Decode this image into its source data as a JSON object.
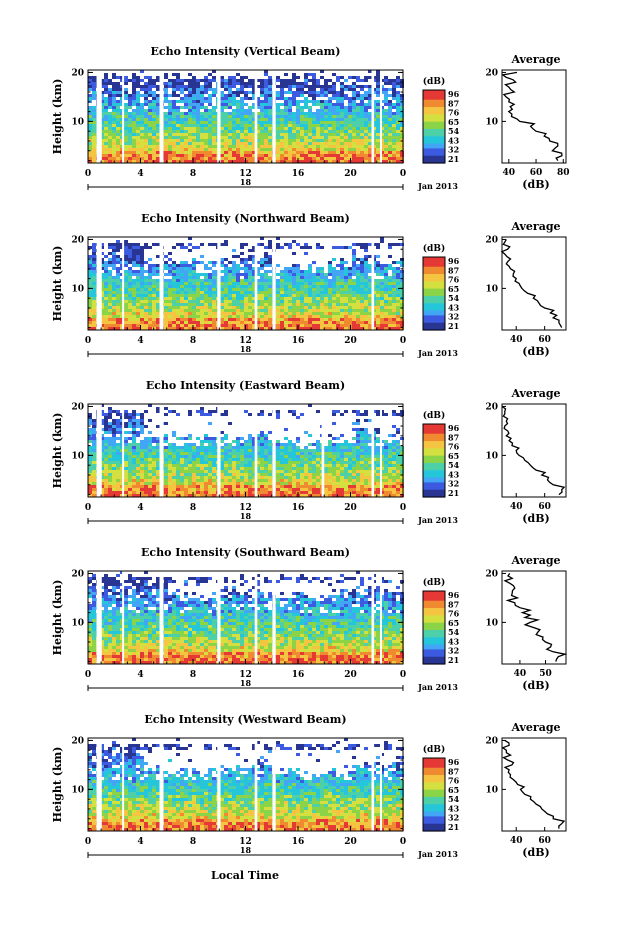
{
  "figure": {
    "xlabel": "Local Time",
    "month_label": "Jan 2013",
    "colorbar_unit": "(dB)",
    "colorbar_ticks": [
      "96",
      "87",
      "76",
      "65",
      "54",
      "43",
      "32",
      "21"
    ],
    "colorscale": [
      "#283593",
      "#3c5be0",
      "#42a5f5",
      "#26c6da",
      "#4dd0a8",
      "#8bd448",
      "#d4e040",
      "#f5c542",
      "#f08a30",
      "#e53935"
    ]
  },
  "chart_data": [
    {
      "type": "heatmap",
      "title": "Echo Intensity (Vertical Beam)",
      "ylabel": "Height (km)",
      "x_ticks": [
        "0",
        "4",
        "8",
        "12",
        "16",
        "20",
        "0"
      ],
      "xlim": [
        0,
        24
      ],
      "date_label": "18",
      "y_ticks": [
        "20",
        "10"
      ],
      "ylim": [
        1.5,
        20.5
      ],
      "echo_top_km": [
        19.3,
        19.0,
        19.2,
        19.4,
        19.1,
        19.3,
        19.0,
        19.2,
        19.3,
        19.1,
        19.0,
        19.2
      ],
      "data_gaps_h": [
        [
          0.65,
          1.05
        ],
        [
          2.6,
          2.75
        ],
        [
          5.45,
          5.75
        ],
        [
          9.85,
          10.1
        ],
        [
          12.7,
          12.9
        ],
        [
          14.05,
          14.3
        ],
        [
          21.6,
          21.8
        ],
        [
          22.25,
          22.4
        ]
      ],
      "average_profile": {
        "title": "Average",
        "xlabel": "(dB)",
        "x_ticks": [
          "40",
          "60",
          "80"
        ],
        "xlim": [
          35,
          82
        ],
        "y_ticks": [
          "20",
          "10"
        ],
        "height_km": [
          2,
          3,
          4,
          5,
          6,
          7,
          8,
          9,
          10,
          11,
          12,
          13,
          14,
          15,
          16,
          17,
          18,
          19,
          20
        ],
        "intensity_db": [
          76,
          79,
          72,
          76,
          70,
          66,
          60,
          56,
          48,
          42,
          40,
          41,
          40,
          38,
          44,
          40,
          45,
          38,
          46
        ]
      }
    },
    {
      "type": "heatmap",
      "title": "Echo Intensity (Northward Beam)",
      "ylabel": "Height (km)",
      "x_ticks": [
        "0",
        "4",
        "8",
        "12",
        "16",
        "20",
        "0"
      ],
      "xlim": [
        0,
        24
      ],
      "date_label": "18",
      "y_ticks": [
        "20",
        "10"
      ],
      "ylim": [
        1.5,
        20.5
      ],
      "echo_top_km": [
        18.5,
        19.2,
        16.0,
        15.5,
        15.0,
        16.5,
        17.5,
        15.0,
        14.5,
        15.5,
        17.0,
        16.0
      ],
      "data_gaps_h": [
        [
          0.65,
          1.05
        ],
        [
          2.6,
          2.75
        ],
        [
          5.45,
          5.75
        ],
        [
          9.85,
          10.1
        ],
        [
          12.7,
          12.9
        ],
        [
          14.05,
          14.3
        ],
        [
          21.6,
          21.8
        ]
      ],
      "average_profile": {
        "title": "Average",
        "xlabel": "(dB)",
        "x_ticks": [
          "40",
          "60"
        ],
        "xlim": [
          30,
          75
        ],
        "y_ticks": [
          "20",
          "10"
        ],
        "height_km": [
          2,
          3,
          4,
          5,
          6,
          7,
          8,
          9,
          10,
          11,
          12,
          13,
          14,
          15,
          16,
          17,
          18,
          19,
          20
        ],
        "intensity_db": [
          72,
          70,
          66,
          64,
          60,
          56,
          52,
          48,
          44,
          42,
          40,
          38,
          36,
          33,
          36,
          32,
          34,
          31,
          33
        ]
      }
    },
    {
      "type": "heatmap",
      "title": "Echo Intensity (Eastward Beam)",
      "ylabel": "Height (km)",
      "x_ticks": [
        "0",
        "4",
        "8",
        "12",
        "16",
        "20",
        "0"
      ],
      "xlim": [
        0,
        24
      ],
      "date_label": "18",
      "y_ticks": [
        "20",
        "10"
      ],
      "ylim": [
        1.5,
        20.5
      ],
      "echo_top_km": [
        19.0,
        18.5,
        14.5,
        13.0,
        13.5,
        14.0,
        15.0,
        13.0,
        12.5,
        13.5,
        15.5,
        14.0
      ],
      "data_gaps_h": [
        [
          0.65,
          1.05
        ],
        [
          2.6,
          2.75
        ],
        [
          5.45,
          5.75
        ],
        [
          9.85,
          10.1
        ],
        [
          12.7,
          12.9
        ],
        [
          14.05,
          14.3
        ],
        [
          17.8,
          18.0
        ],
        [
          21.6,
          21.8
        ],
        [
          22.25,
          22.4
        ]
      ],
      "average_profile": {
        "title": "Average",
        "xlabel": "(dB)",
        "x_ticks": [
          "40",
          "60"
        ],
        "xlim": [
          30,
          75
        ],
        "y_ticks": [
          "20",
          "10"
        ],
        "height_km": [
          2,
          3,
          4,
          5,
          6,
          7,
          8,
          9,
          10,
          11,
          12,
          13,
          14,
          15,
          16,
          17,
          18,
          19,
          20
        ],
        "intensity_db": [
          70,
          72,
          66,
          62,
          58,
          54,
          50,
          46,
          42,
          40,
          37,
          35,
          33,
          34,
          32,
          33,
          31,
          32,
          30
        ]
      }
    },
    {
      "type": "heatmap",
      "title": "Echo Intensity (Southward Beam)",
      "ylabel": "Height (km)",
      "x_ticks": [
        "0",
        "4",
        "8",
        "12",
        "16",
        "20",
        "0"
      ],
      "xlim": [
        0,
        24
      ],
      "date_label": "18",
      "y_ticks": [
        "20",
        "10"
      ],
      "ylim": [
        1.5,
        20.5
      ],
      "echo_top_km": [
        19.5,
        19.0,
        18.5,
        16.0,
        15.5,
        16.5,
        17.0,
        16.0,
        15.5,
        16.5,
        17.5,
        16.5
      ],
      "data_gaps_h": [
        [
          0.65,
          1.05
        ],
        [
          2.6,
          2.75
        ],
        [
          5.45,
          5.75
        ],
        [
          9.85,
          10.1
        ],
        [
          12.7,
          12.9
        ],
        [
          14.05,
          14.3
        ],
        [
          21.6,
          21.8
        ],
        [
          22.25,
          22.4
        ]
      ],
      "average_profile": {
        "title": "Average",
        "xlabel": "(dB)",
        "x_ticks": [
          "40",
          "50"
        ],
        "xlim": [
          33,
          58
        ],
        "y_ticks": [
          "20",
          "10"
        ],
        "height_km": [
          2,
          3,
          4,
          5,
          6,
          7,
          8,
          9,
          10,
          11,
          12,
          13,
          14,
          15,
          16,
          17,
          18,
          19,
          20
        ],
        "intensity_db": [
          54,
          55,
          53,
          52,
          50,
          49,
          47,
          45,
          44,
          42,
          41,
          40,
          38,
          39,
          37,
          38,
          36,
          37,
          36
        ]
      }
    },
    {
      "type": "heatmap",
      "title": "Echo Intensity (Westward Beam)",
      "ylabel": "Height (km)",
      "x_ticks": [
        "0",
        "4",
        "8",
        "12",
        "16",
        "20",
        "0"
      ],
      "xlim": [
        0,
        24
      ],
      "date_label": "18",
      "y_ticks": [
        "20",
        "10"
      ],
      "ylim": [
        1.5,
        20.5
      ],
      "echo_top_km": [
        19.2,
        18.8,
        15.0,
        14.0,
        13.5,
        14.5,
        15.5,
        14.0,
        13.5,
        14.5,
        16.0,
        15.0
      ],
      "data_gaps_h": [
        [
          0.65,
          1.05
        ],
        [
          2.6,
          2.75
        ],
        [
          5.45,
          5.75
        ],
        [
          9.85,
          10.1
        ],
        [
          12.7,
          12.9
        ],
        [
          14.05,
          14.3
        ],
        [
          21.6,
          21.8
        ],
        [
          22.25,
          22.4
        ]
      ],
      "average_profile": {
        "title": "Average",
        "xlabel": "(dB)",
        "x_ticks": [
          "40",
          "60"
        ],
        "xlim": [
          30,
          75
        ],
        "y_ticks": [
          "20",
          "10"
        ],
        "height_km": [
          2,
          3,
          4,
          5,
          6,
          7,
          8,
          9,
          10,
          11,
          12,
          13,
          14,
          15,
          16,
          17,
          18,
          19,
          20
        ],
        "intensity_db": [
          70,
          72,
          66,
          62,
          58,
          54,
          50,
          46,
          43,
          41,
          38,
          36,
          35,
          37,
          34,
          36,
          33,
          35,
          32
        ]
      }
    }
  ]
}
